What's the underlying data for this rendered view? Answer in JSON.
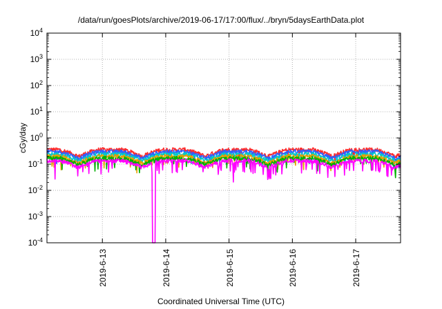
{
  "chart_data": {
    "type": "line",
    "title": "/data/run/goesPlots/archive/2019-06-17/17:00/flux/../bryn/5daysEarthData.plot",
    "xlabel": "Coordinated Universal Time (UTC)",
    "ylabel": "cGy/day",
    "yscale": "log",
    "ylim": [
      0.0001,
      10000
    ],
    "xlim": [
      "2019-06-12 03:00",
      "2019-06-17 17:00"
    ],
    "y_ticks": [
      {
        "base": "10",
        "exp": "-4"
      },
      {
        "base": "10",
        "exp": "-3"
      },
      {
        "base": "10",
        "exp": "-2"
      },
      {
        "base": "10",
        "exp": "-1"
      },
      {
        "base": "10",
        "exp": "0"
      },
      {
        "base": "10",
        "exp": "1"
      },
      {
        "base": "10",
        "exp": "2"
      },
      {
        "base": "10",
        "exp": "3"
      },
      {
        "base": "10",
        "exp": "4"
      }
    ],
    "x_ticks": [
      "2019-6-13",
      "2019-6-14",
      "2019-6-15",
      "2019-6-16",
      "2019-6-17"
    ],
    "grid": true,
    "colors": [
      "#ff2a2a",
      "#3060ff",
      "#00c8c8",
      "#e8a000",
      "#00b000",
      "#ff00ff"
    ],
    "series_levels": [
      0.36,
      0.3,
      0.24,
      0.2,
      0.17,
      0.135
    ],
    "daily_cycle_low": [
      "2019-06-12 15:00",
      "2019-06-13 15:00",
      "2019-06-14 15:00",
      "2019-06-15 15:00",
      "2019-06-16 15:00",
      "2019-06-17 15:00"
    ],
    "dropout": {
      "from": "2019-06-13 19:00",
      "to": "2019-06-13 20:00",
      "value": 0.0001
    }
  }
}
